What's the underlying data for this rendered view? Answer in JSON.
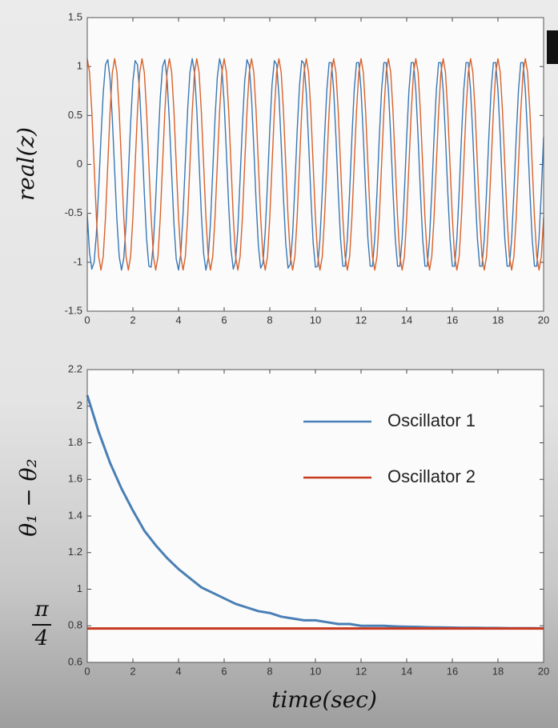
{
  "chart_data": [
    {
      "type": "line",
      "ylabel": "real(z)",
      "xlim": [
        0,
        20
      ],
      "ylim": [
        -1.5,
        1.5
      ],
      "xticks": [
        0,
        2,
        4,
        6,
        8,
        10,
        12,
        14,
        16,
        18,
        20
      ],
      "yticks": [
        -1.5,
        -1,
        -0.5,
        0,
        0.5,
        1,
        1.5
      ],
      "x": [
        0,
        0.1,
        0.2,
        0.3,
        0.4,
        0.5,
        0.6,
        0.7,
        0.8,
        0.9,
        1,
        1.1,
        1.2,
        1.3,
        1.4,
        1.5,
        1.6,
        1.7,
        1.8,
        1.9,
        2,
        2.1,
        2.2,
        2.3,
        2.4,
        2.5,
        2.6,
        2.7,
        2.8,
        2.9,
        3,
        3.1,
        3.2,
        3.3,
        3.4,
        3.5,
        3.6,
        3.7,
        3.8,
        3.9,
        4,
        4.1,
        4.2,
        4.3,
        4.4,
        4.5,
        4.6,
        4.7,
        4.8,
        4.9,
        5,
        5.1,
        5.2,
        5.3,
        5.4,
        5.5,
        5.6,
        5.7,
        5.8,
        5.9,
        6,
        6.1,
        6.2,
        6.3,
        6.4,
        6.5,
        6.6,
        6.7,
        6.8,
        6.9,
        7,
        7.1,
        7.2,
        7.3,
        7.4,
        7.5,
        7.6,
        7.7,
        7.8,
        7.9,
        8,
        8.1,
        8.2,
        8.3,
        8.4,
        8.5,
        8.6,
        8.7,
        8.8,
        8.9,
        9,
        9.1,
        9.2,
        9.3,
        9.4,
        9.5,
        9.6,
        9.7,
        9.8,
        9.9,
        10,
        10.1,
        10.2,
        10.3,
        10.4,
        10.5,
        10.6,
        10.7,
        10.8,
        10.9,
        11,
        11.1,
        11.2,
        11.3,
        11.4,
        11.5,
        11.6,
        11.7,
        11.8,
        11.9,
        12,
        12.1,
        12.2,
        12.3,
        12.4,
        12.5,
        12.6,
        12.7,
        12.8,
        12.9,
        13,
        13.1,
        13.2,
        13.3,
        13.4,
        13.5,
        13.6,
        13.7,
        13.8,
        13.9,
        14,
        14.1,
        14.2,
        14.3,
        14.4,
        14.5,
        14.6,
        14.7,
        14.8,
        14.9,
        15,
        15.1,
        15.2,
        15.3,
        15.4,
        15.5,
        15.6,
        15.7,
        15.8,
        15.9,
        16,
        16.1,
        16.2,
        16.3,
        16.4,
        16.5,
        16.6,
        16.7,
        16.8,
        16.9,
        17,
        17.1,
        17.2,
        17.3,
        17.4,
        17.5,
        17.6,
        17.7,
        17.8,
        17.9,
        18,
        18.1,
        18.2,
        18.3,
        18.4,
        18.5,
        18.6,
        18.7,
        18.8,
        18.9,
        19,
        19.1,
        19.2,
        19.3,
        19.4,
        19.5,
        19.6,
        19.7,
        19.8,
        19.9,
        20
      ],
      "series": [
        {
          "color": "#3a78b5",
          "values": [
            -0.51,
            -0.9,
            -1.07,
            -1.0,
            -0.71,
            -0.25,
            0.27,
            0.73,
            1.02,
            1.07,
            0.87,
            0.46,
            -0.06,
            -0.57,
            -0.94,
            -1.08,
            -0.96,
            -0.61,
            -0.11,
            0.42,
            0.85,
            1.06,
            1.02,
            0.72,
            0.25,
            -0.29,
            -0.76,
            -1.04,
            -1.05,
            -0.8,
            -0.35,
            0.19,
            0.68,
            1.0,
            1.07,
            0.86,
            0.44,
            -0.1,
            -0.61,
            -0.97,
            -1.08,
            -0.91,
            -0.5,
            0.03,
            0.56,
            0.94,
            1.08,
            0.94,
            0.56,
            0.03,
            -0.51,
            -0.91,
            -1.08,
            -0.96,
            -0.6,
            -0.07,
            0.47,
            0.89,
            1.08,
            0.98,
            0.63,
            0.11,
            -0.43,
            -0.87,
            -1.07,
            -0.99,
            -0.66,
            -0.14,
            0.4,
            0.85,
            1.07,
            1.01,
            0.68,
            0.17,
            -0.38,
            -0.83,
            -1.06,
            -1.01,
            -0.69,
            -0.19,
            0.36,
            0.82,
            1.06,
            1.02,
            0.71,
            0.21,
            -0.35,
            -0.81,
            -1.06,
            -1.02,
            -0.72,
            -0.22,
            0.34,
            0.8,
            1.06,
            1.03,
            0.73,
            0.23,
            -0.32,
            -0.8,
            -1.05,
            -1.04,
            -0.76,
            -0.28,
            0.28,
            0.76,
            1.04,
            1.04,
            0.76,
            0.28,
            -0.28,
            -0.76,
            -1.04,
            -1.04,
            -0.76,
            -0.28,
            0.28,
            0.76,
            1.04,
            1.04,
            0.76,
            0.28,
            -0.28,
            -0.76,
            -1.04,
            -1.04,
            -0.76,
            -0.28,
            0.28,
            0.76,
            1.04,
            1.04,
            0.76,
            0.28,
            -0.28,
            -0.76,
            -1.04,
            -1.04,
            -0.76,
            -0.28,
            0.28,
            0.76,
            1.04,
            1.04,
            0.76,
            0.28,
            -0.28,
            -0.76,
            -1.04,
            -1.04,
            -0.76,
            -0.28,
            0.28,
            0.76,
            1.04,
            1.04,
            0.76,
            0.28,
            -0.28,
            -0.76,
            -1.04,
            -1.04,
            -0.76,
            -0.28,
            0.28,
            0.76,
            1.04,
            1.04,
            0.76,
            0.28,
            -0.28,
            -0.76,
            -1.04,
            -1.04,
            -0.76,
            -0.28,
            0.28,
            0.76,
            1.04,
            1.04,
            0.76,
            0.28,
            -0.28,
            -0.76,
            -1.04,
            -1.04,
            -0.76,
            -0.28,
            0.28,
            0.76,
            1.04,
            1.04,
            0.76,
            0.28,
            -0.28,
            -0.76,
            -1.04,
            -1.04,
            -0.76,
            -0.28,
            0.28
          ]
        },
        {
          "color": "#d9622b",
          "values": [
            1.08,
            0.94,
            0.54,
            0,
            -0.54,
            -0.94,
            -1.08,
            -0.94,
            -0.54,
            0,
            0.54,
            0.94,
            1.08,
            0.94,
            0.54,
            0,
            -0.54,
            -0.94,
            -1.08,
            -0.94,
            -0.54,
            0,
            0.54,
            0.94,
            1.08,
            0.94,
            0.54,
            0,
            -0.54,
            -0.94,
            -1.08,
            -0.94,
            -0.54,
            0,
            0.54,
            0.94,
            1.08,
            0.94,
            0.54,
            0,
            -0.54,
            -0.94,
            -1.08,
            -0.94,
            -0.54,
            0,
            0.54,
            0.94,
            1.08,
            0.94,
            0.54,
            0,
            -0.54,
            -0.94,
            -1.08,
            -0.94,
            -0.54,
            0,
            0.54,
            0.94,
            1.08,
            0.94,
            0.54,
            0,
            -0.54,
            -0.94,
            -1.08,
            -0.94,
            -0.54,
            0,
            0.54,
            0.94,
            1.08,
            0.94,
            0.54,
            0,
            -0.54,
            -0.94,
            -1.08,
            -0.94,
            -0.54,
            0,
            0.54,
            0.94,
            1.08,
            0.94,
            0.54,
            0,
            -0.54,
            -0.94,
            -1.08,
            -0.94,
            -0.54,
            0,
            0.54,
            0.94,
            1.08,
            0.94,
            0.54,
            0,
            -0.54,
            -0.94,
            -1.08,
            -0.94,
            -0.54,
            0,
            0.54,
            0.94,
            1.08,
            0.94,
            0.54,
            0,
            -0.54,
            -0.94,
            -1.08,
            -0.94,
            -0.54,
            0,
            0.54,
            0.94,
            1.08,
            0.94,
            0.54,
            0,
            -0.54,
            -0.94,
            -1.08,
            -0.94,
            -0.54,
            0,
            0.54,
            0.94,
            1.08,
            0.94,
            0.54,
            0,
            -0.54,
            -0.94,
            -1.08,
            -0.94,
            -0.54,
            0,
            0.54,
            0.94,
            1.08,
            0.94,
            0.54,
            0,
            -0.54,
            -0.94,
            -1.08,
            -0.94,
            -0.54,
            0,
            0.54,
            0.94,
            1.08,
            0.94,
            0.54,
            0,
            -0.54,
            -0.94,
            -1.08,
            -0.94,
            -0.54,
            0,
            0.54,
            0.94,
            1.08,
            0.94,
            0.54,
            0,
            -0.54,
            -0.94,
            -1.08,
            -0.94,
            -0.54,
            0,
            0.54,
            0.94,
            1.08,
            0.94,
            0.54,
            0,
            -0.54,
            -0.94,
            -1.08,
            -0.94,
            -0.54,
            0,
            0.54,
            0.94,
            1.08,
            0.94,
            0.54,
            0,
            -0.54,
            -0.94,
            -1.08,
            -0.94,
            -0.54
          ]
        }
      ]
    },
    {
      "type": "line",
      "ylabel": "θ₁ − θ₂",
      "xlabel": "time(sec)",
      "pi_label": {
        "numerator": "π",
        "denominator": "4"
      },
      "legend": "upper right",
      "xlim": [
        0,
        20
      ],
      "ylim": [
        0.6,
        2.2
      ],
      "xticks": [
        0,
        2,
        4,
        6,
        8,
        10,
        12,
        14,
        16,
        18,
        20
      ],
      "yticks": [
        0.6,
        0.8,
        1,
        1.2,
        1.4,
        1.6,
        1.8,
        2,
        2.2
      ],
      "x": [
        0,
        0.5,
        1,
        1.5,
        2,
        2.5,
        3,
        3.5,
        4,
        4.5,
        5,
        5.5,
        6,
        6.5,
        7,
        7.5,
        8,
        8.5,
        9,
        9.5,
        10,
        10.5,
        11,
        11.5,
        12,
        12.5,
        13,
        13.5,
        14,
        14.5,
        15,
        15.5,
        16,
        16.5,
        17,
        17.5,
        18,
        18.5,
        19,
        19.5,
        20
      ],
      "series": [
        {
          "name": "Oscillator 1",
          "color": "#4a7fb5",
          "values": [
            2.06,
            1.86,
            1.69,
            1.55,
            1.43,
            1.32,
            1.24,
            1.17,
            1.11,
            1.06,
            1.01,
            0.98,
            0.95,
            0.92,
            0.9,
            0.88,
            0.87,
            0.85,
            0.84,
            0.83,
            0.83,
            0.82,
            0.81,
            0.81,
            0.8,
            0.8,
            0.8,
            0.797,
            0.795,
            0.794,
            0.792,
            0.791,
            0.79,
            0.789,
            0.789,
            0.788,
            0.788,
            0.787,
            0.787,
            0.787,
            0.786
          ]
        },
        {
          "name": "Oscillator 2",
          "color": "#c8381f",
          "values": [
            0.785,
            0.785,
            0.785,
            0.785,
            0.785,
            0.785,
            0.785,
            0.785,
            0.785,
            0.785,
            0.785,
            0.785,
            0.785,
            0.785,
            0.785,
            0.785,
            0.785,
            0.785,
            0.785,
            0.785,
            0.785,
            0.785,
            0.785,
            0.785,
            0.785,
            0.785,
            0.785,
            0.785,
            0.785,
            0.785,
            0.785,
            0.785,
            0.785,
            0.785,
            0.785,
            0.785,
            0.785,
            0.785,
            0.785,
            0.785,
            0.785
          ]
        }
      ]
    }
  ]
}
